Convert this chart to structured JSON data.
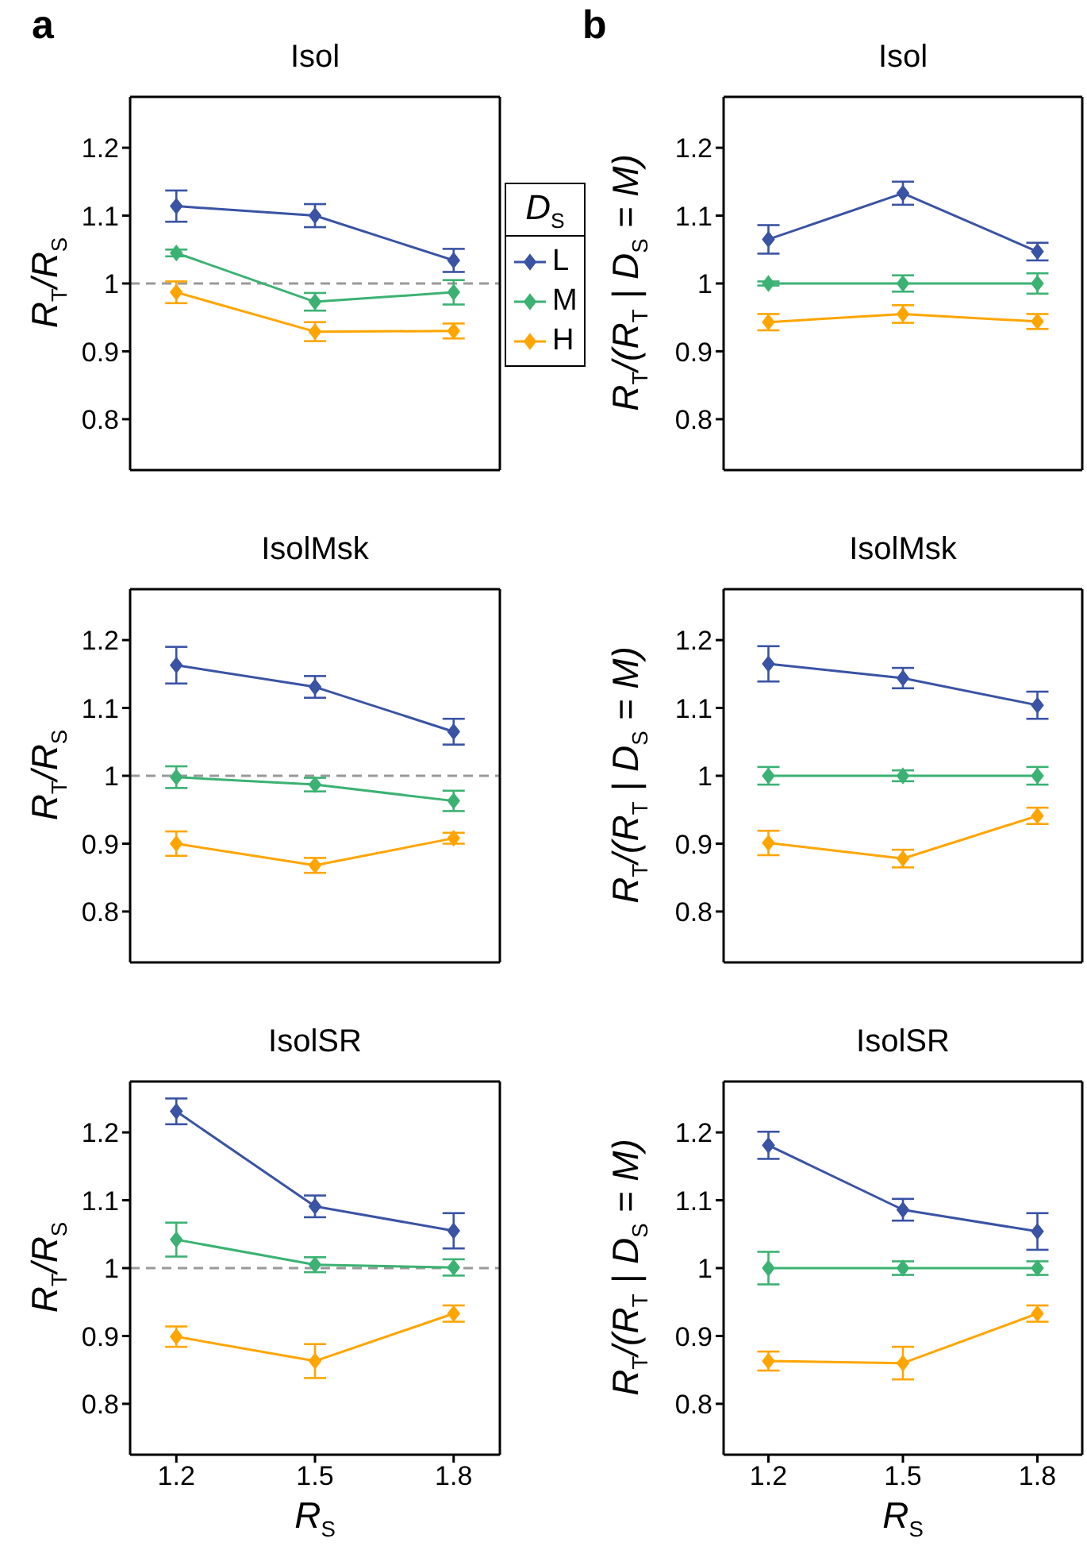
{
  "chart_data": [
    {
      "type": "line",
      "title": "Isol",
      "ylabel": "R$_{T}$/R$_{S}$",
      "annotations": [
        "a"
      ],
      "x": [
        1.2,
        1.5,
        1.8
      ],
      "xlim": [
        1.1,
        1.9
      ],
      "xticks": [
        1.2,
        1.5,
        1.8
      ],
      "ylim": [
        0.725,
        1.275
      ],
      "yticks": [
        0.8,
        0.9,
        1,
        1.1,
        1.2
      ],
      "tick_labels": "y",
      "marker": "diamond",
      "legend": "right",
      "legend_title": "D$_{S}$",
      "ref_lines": [
        {
          "axis": "y",
          "value": 1,
          "color": "#999999",
          "line_style": "dashed"
        }
      ],
      "series": [
        {
          "name": "L",
          "color": "#3a53a4",
          "values": [
            1.114,
            1.1,
            1.034
          ],
          "errors": [
            0.023,
            0.017,
            0.017
          ]
        },
        {
          "name": "M",
          "color": "#3bb273",
          "values": [
            1.045,
            0.973,
            0.987
          ],
          "errors": [
            0.005,
            0.013,
            0.018
          ]
        },
        {
          "name": "H",
          "color": "#ffa500",
          "values": [
            0.987,
            0.929,
            0.93
          ],
          "errors": [
            0.016,
            0.014,
            0.011
          ]
        }
      ]
    },
    {
      "type": "line",
      "title": "Isol",
      "ylabel": "R$_{T}$/(R$_{T}$ | D$_{S}$ = M)",
      "annotations": [
        "b"
      ],
      "x": [
        1.2,
        1.5,
        1.8
      ],
      "xlim": [
        1.1,
        1.9
      ],
      "xticks": [
        1.2,
        1.5,
        1.8
      ],
      "ylim": [
        0.725,
        1.275
      ],
      "yticks": [
        0.8,
        0.9,
        1,
        1.1,
        1.2
      ],
      "tick_labels": "y",
      "marker": "diamond",
      "series": [
        {
          "color": "#3a53a4",
          "values": [
            1.065,
            1.133,
            1.047
          ],
          "errors": [
            0.021,
            0.017,
            0.013
          ]
        },
        {
          "color": "#3bb273",
          "values": [
            1,
            1,
            1
          ],
          "errors": [
            0.003,
            0.012,
            0.015
          ]
        },
        {
          "color": "#ffa500",
          "values": [
            0.943,
            0.955,
            0.944
          ],
          "errors": [
            0.012,
            0.013,
            0.011
          ]
        }
      ]
    },
    {
      "type": "line",
      "title": "IsolMsk",
      "ylabel": "R$_{T}$/R$_{S}$",
      "x": [
        1.2,
        1.5,
        1.8
      ],
      "xlim": [
        1.1,
        1.9
      ],
      "xticks": [
        1.2,
        1.5,
        1.8
      ],
      "ylim": [
        0.725,
        1.275
      ],
      "yticks": [
        0.8,
        0.9,
        1,
        1.1,
        1.2
      ],
      "tick_labels": "y",
      "marker": "diamond",
      "ref_lines": [
        {
          "axis": "y",
          "value": 1,
          "color": "#999999",
          "line_style": "dashed"
        }
      ],
      "series": [
        {
          "color": "#3a53a4",
          "values": [
            1.163,
            1.131,
            1.065
          ],
          "errors": [
            0.027,
            0.016,
            0.019
          ]
        },
        {
          "color": "#3bb273",
          "values": [
            0.998,
            0.987,
            0.963
          ],
          "errors": [
            0.016,
            0.01,
            0.015
          ]
        },
        {
          "color": "#ffa500",
          "values": [
            0.9,
            0.868,
            0.908
          ],
          "errors": [
            0.018,
            0.011,
            0.008
          ]
        }
      ]
    },
    {
      "type": "line",
      "title": "IsolMsk",
      "ylabel": "R$_{T}$/(R$_{T}$ | D$_{S}$ = M)",
      "x": [
        1.2,
        1.5,
        1.8
      ],
      "xlim": [
        1.1,
        1.9
      ],
      "xticks": [
        1.2,
        1.5,
        1.8
      ],
      "ylim": [
        0.725,
        1.275
      ],
      "yticks": [
        0.8,
        0.9,
        1,
        1.1,
        1.2
      ],
      "tick_labels": "y",
      "marker": "diamond",
      "series": [
        {
          "color": "#3a53a4",
          "values": [
            1.165,
            1.144,
            1.104
          ],
          "errors": [
            0.026,
            0.015,
            0.02
          ]
        },
        {
          "color": "#3bb273",
          "values": [
            1,
            1,
            1
          ],
          "errors": [
            0.013,
            0.008,
            0.013
          ]
        },
        {
          "color": "#ffa500",
          "values": [
            0.901,
            0.878,
            0.941
          ],
          "errors": [
            0.018,
            0.013,
            0.012
          ]
        }
      ]
    },
    {
      "type": "line",
      "title": "IsolSR",
      "ylabel": "R$_{T}$/R$_{S}$",
      "xlabel": "R$_{S}$",
      "x": [
        1.2,
        1.5,
        1.8
      ],
      "xlim": [
        1.1,
        1.9
      ],
      "xticks": [
        1.2,
        1.5,
        1.8
      ],
      "ylim": [
        0.725,
        1.275
      ],
      "yticks": [
        0.8,
        0.9,
        1,
        1.1,
        1.2
      ],
      "marker": "diamond",
      "ref_lines": [
        {
          "axis": "y",
          "value": 1,
          "color": "#999999",
          "line_style": "dashed"
        }
      ],
      "series": [
        {
          "color": "#3a53a4",
          "values": [
            1.231,
            1.091,
            1.055
          ],
          "errors": [
            0.019,
            0.016,
            0.026
          ]
        },
        {
          "color": "#3bb273",
          "values": [
            1.042,
            1.005,
            1.001
          ],
          "errors": [
            0.025,
            0.011,
            0.012
          ]
        },
        {
          "color": "#ffa500",
          "values": [
            0.899,
            0.863,
            0.933
          ],
          "errors": [
            0.015,
            0.025,
            0.012
          ]
        }
      ]
    },
    {
      "type": "line",
      "title": "IsolSR",
      "ylabel": "R$_{T}$/(R$_{T}$ | D$_{S}$ = M)",
      "xlabel": "R$_{S}$",
      "x": [
        1.2,
        1.5,
        1.8
      ],
      "xlim": [
        1.1,
        1.9
      ],
      "xticks": [
        1.2,
        1.5,
        1.8
      ],
      "ylim": [
        0.725,
        1.275
      ],
      "yticks": [
        0.8,
        0.9,
        1,
        1.1,
        1.2
      ],
      "marker": "diamond",
      "series": [
        {
          "color": "#3a53a4",
          "values": [
            1.181,
            1.086,
            1.054
          ],
          "errors": [
            0.02,
            0.016,
            0.027
          ]
        },
        {
          "color": "#3bb273",
          "values": [
            1,
            1,
            1
          ],
          "errors": [
            0.024,
            0.01,
            0.01
          ]
        },
        {
          "color": "#ffa500",
          "values": [
            0.863,
            0.86,
            0.933
          ],
          "errors": [
            0.014,
            0.024,
            0.012
          ]
        }
      ]
    }
  ]
}
